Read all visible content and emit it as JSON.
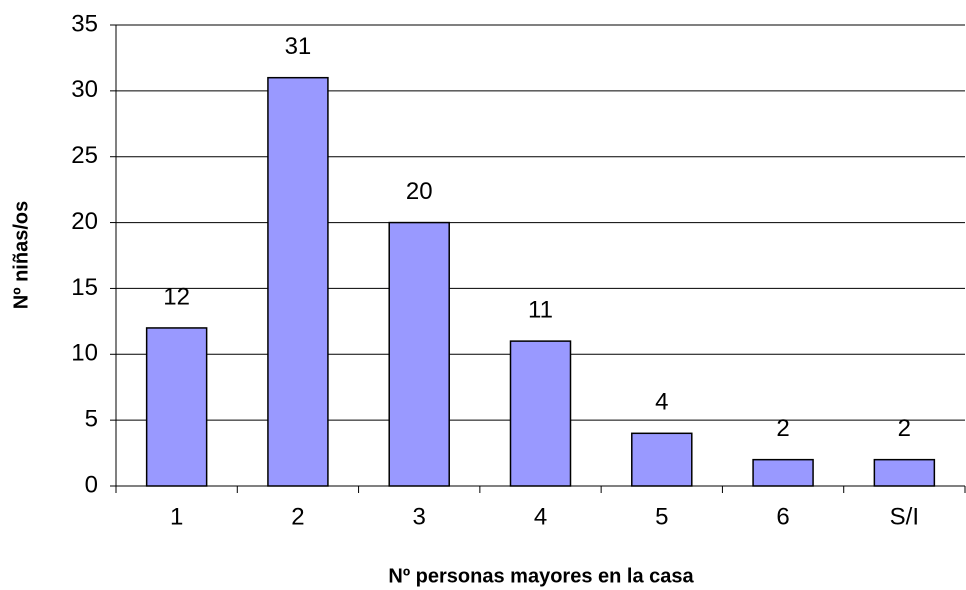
{
  "chart_data": {
    "type": "bar",
    "x_label": "Nº personas mayores en la casa",
    "y_label": "Nº niñas/os",
    "categories": [
      "1",
      "2",
      "3",
      "4",
      "5",
      "6",
      "S/I"
    ],
    "values": [
      12,
      31,
      20,
      11,
      4,
      2,
      2
    ],
    "color": "#9999ff",
    "ylim": [
      0,
      35
    ],
    "yticks": [
      0,
      5,
      10,
      15,
      20,
      25,
      30,
      35
    ],
    "grid": true
  }
}
